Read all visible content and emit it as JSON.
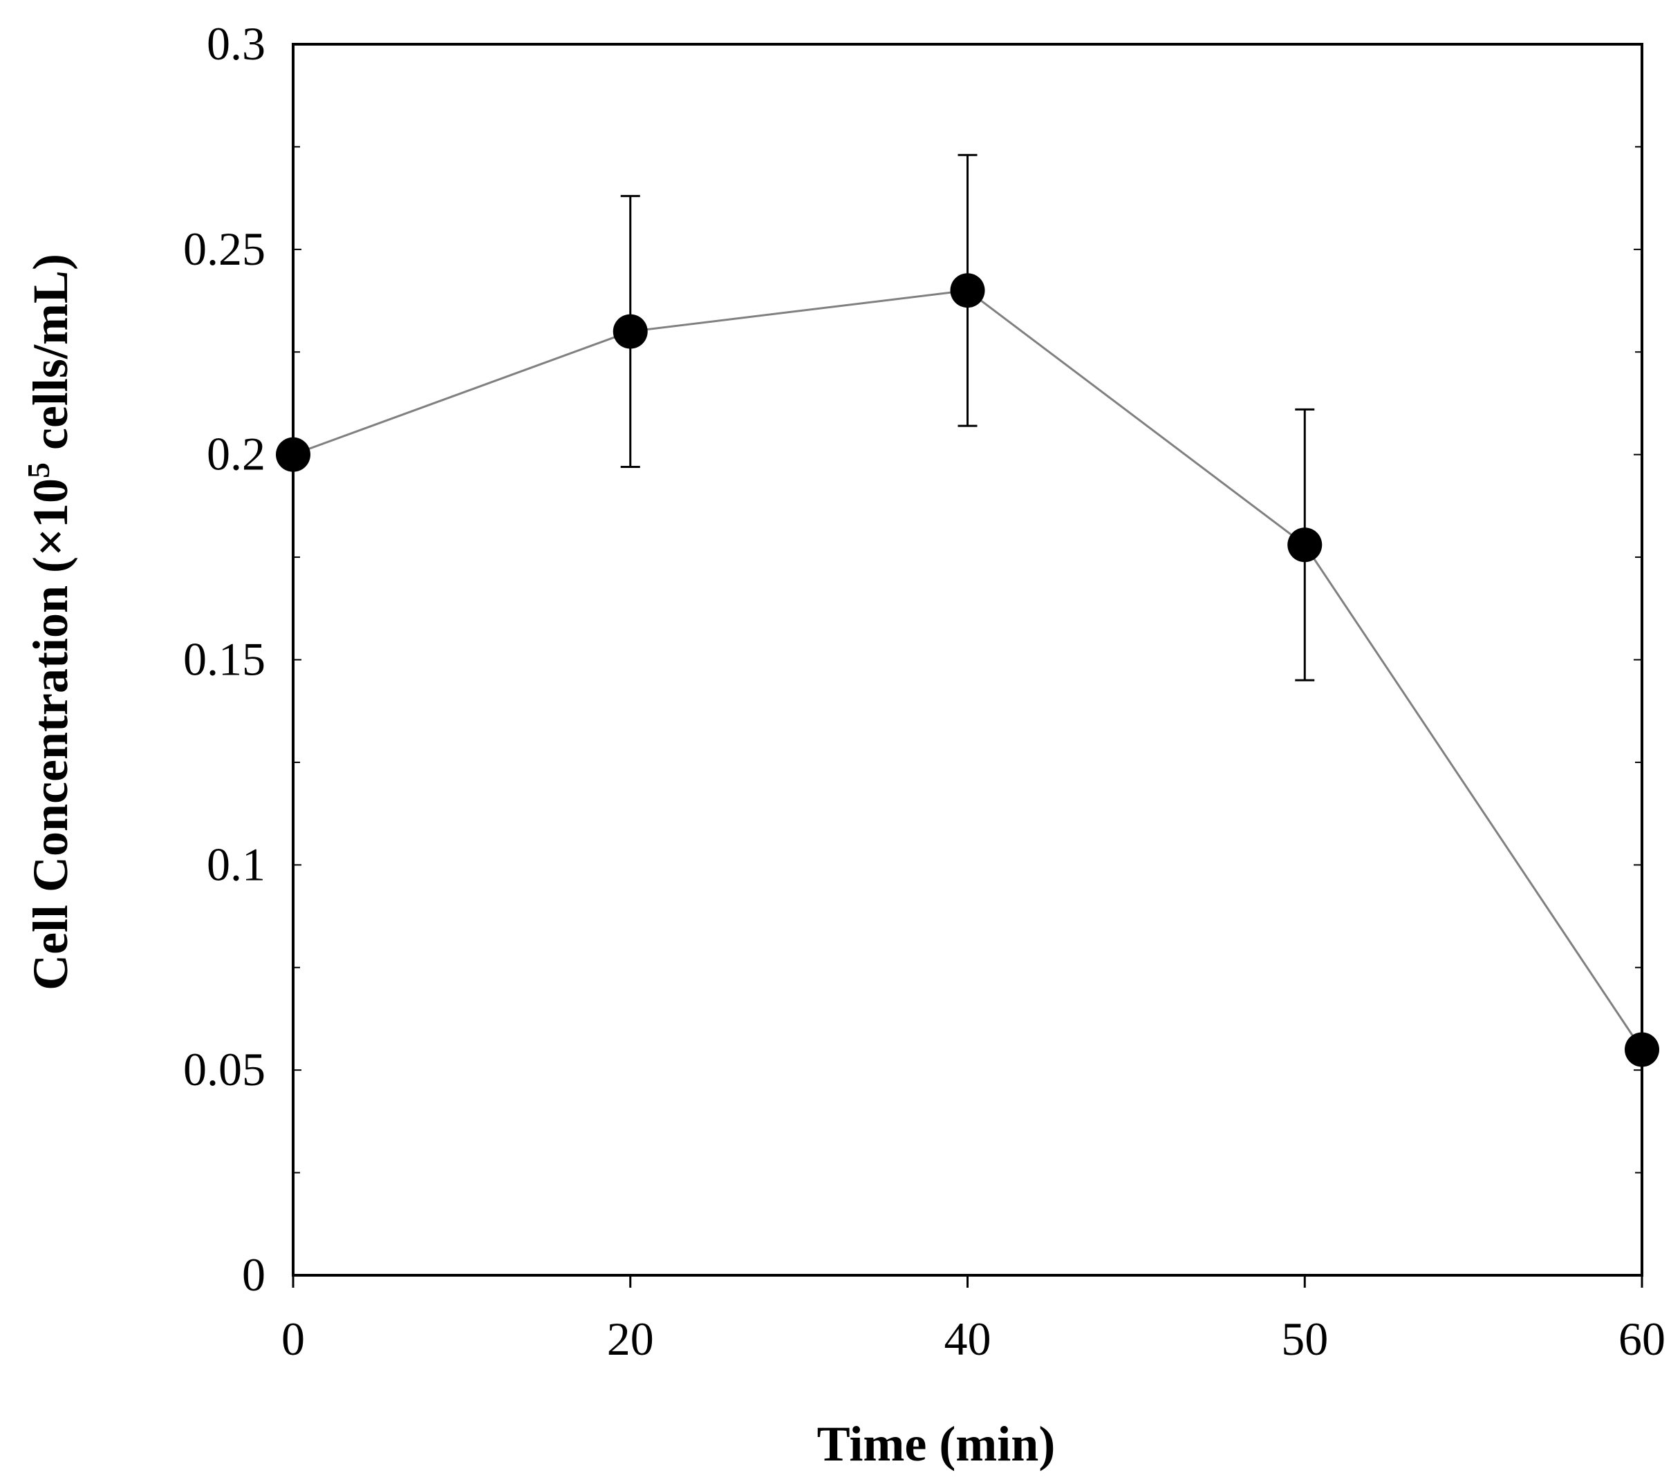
{
  "chart_data": {
    "type": "line",
    "title": "",
    "xlabel": "Time (min)",
    "ylabel": {
      "prefix": "Cell Concentration (×10",
      "superscript": "5",
      "suffix": " cells/mL)"
    },
    "x_categories": [
      "0",
      "20",
      "40",
      "50",
      "60"
    ],
    "y_ticks": [
      "0",
      "0.05",
      "0.1",
      "0.15",
      "0.2",
      "0.25",
      "0.3"
    ],
    "ylim": [
      0,
      0.3
    ],
    "series": [
      {
        "name": "Cell Concentration",
        "values": [
          0.2,
          0.23,
          0.24,
          0.178,
          0.055
        ],
        "error": [
          null,
          0.033,
          0.033,
          0.033,
          null
        ],
        "line_color": "#808080",
        "marker_color": "#000000",
        "errorbar_color": "#000000"
      }
    ],
    "grid": false,
    "legend": "none"
  }
}
